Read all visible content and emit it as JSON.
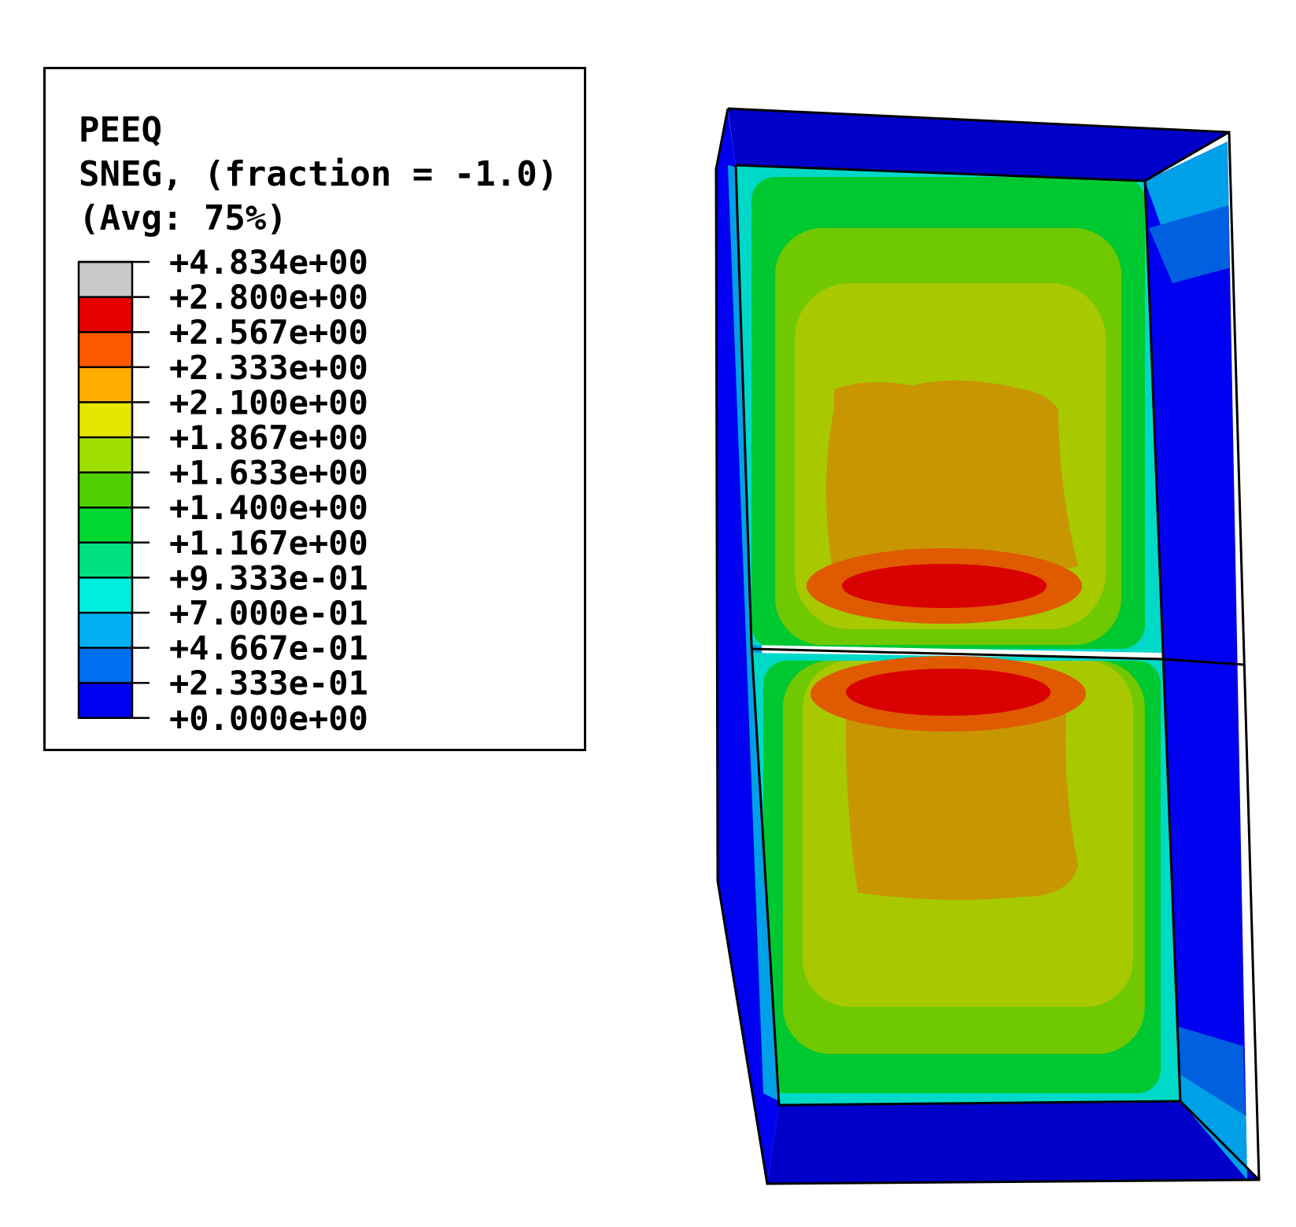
{
  "legend": {
    "variable": "PEEQ",
    "section": "SNEG, (fraction = -1.0)",
    "averaging": "(Avg: 75%)",
    "labels": [
      "+4.834e+00",
      "+2.800e+00",
      "+2.567e+00",
      "+2.333e+00",
      "+2.100e+00",
      "+1.867e+00",
      "+1.633e+00",
      "+1.400e+00",
      "+1.167e+00",
      "+9.333e-01",
      "+7.000e-01",
      "+4.667e-01",
      "+2.333e-01",
      "+0.000e+00"
    ],
    "colors": [
      "#c8c8c8",
      "#e60000",
      "#ff5a00",
      "#ffad00",
      "#e6e600",
      "#a0e000",
      "#50d000",
      "#00d832",
      "#00e080",
      "#00f0e0",
      "#00b0f0",
      "#0070f0",
      "#0000f0"
    ]
  },
  "model": {
    "colors": {
      "outline": "#000000",
      "dark_blue": "#0000c8",
      "blue": "#0000f0",
      "mid_blue": "#0060e0",
      "light_blue": "#00a0e8",
      "cyan": "#00d8c8",
      "green": "#00c830",
      "lime": "#70c800",
      "yellow_green": "#a8c800",
      "ochre": "#c89600",
      "orange": "#e05a00",
      "red": "#d80000"
    }
  }
}
